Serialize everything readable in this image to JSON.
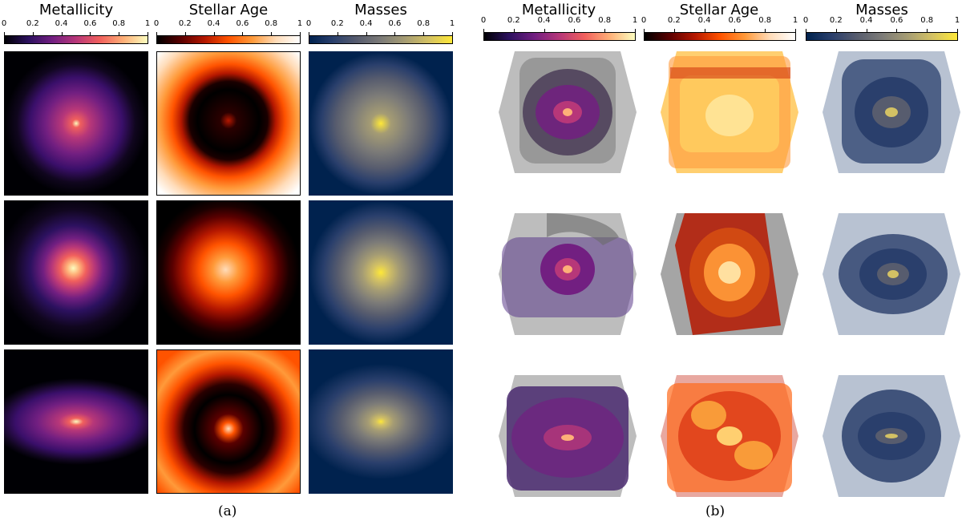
{
  "panel_a": {
    "columns": [
      {
        "title": "Metallicity",
        "colormap": "magma"
      },
      {
        "title": "Stellar Age",
        "colormap": "gist_heat"
      },
      {
        "title": "Masses",
        "colormap": "cividis"
      }
    ],
    "tick_labels": [
      "0",
      "0.2",
      "0.4",
      "0.6",
      "0.8",
      "1"
    ],
    "caption": "(a)"
  },
  "panel_b": {
    "columns": [
      {
        "title": "Metallicity",
        "colormap": "magma"
      },
      {
        "title": "Stellar Age",
        "colormap": "gist_heat"
      },
      {
        "title": "Masses",
        "colormap": "cividis"
      }
    ],
    "tick_labels": [
      "0",
      "0.2",
      "0.4",
      "0.6",
      "0.8",
      "1"
    ],
    "caption": "(b)"
  },
  "colors": {
    "magma": [
      "#000004",
      "#2c115f",
      "#721f81",
      "#b73779",
      "#f1605d",
      "#feb078",
      "#fcfdbf"
    ],
    "gist_heat": [
      "#000000",
      "#5a0000",
      "#b41700",
      "#ff5300",
      "#ff9a3a",
      "#ffdcb9",
      "#ffffff"
    ],
    "cividis": [
      "#00224e",
      "#2a3f6c",
      "#575c6e",
      "#7c7b78",
      "#a59c74",
      "#d3c164",
      "#fee838"
    ],
    "hex_gray": "#bdbdbd"
  }
}
